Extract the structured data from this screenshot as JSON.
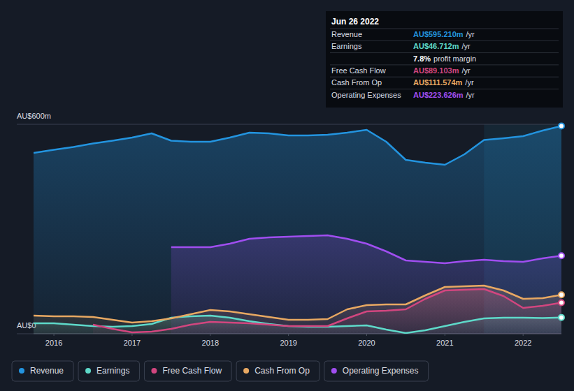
{
  "chart_data": {
    "type": "line",
    "x": [
      2015.74,
      2016.0,
      2016.25,
      2016.5,
      2016.75,
      2017.0,
      2017.25,
      2017.5,
      2017.75,
      2018.0,
      2018.25,
      2018.5,
      2018.75,
      2019.0,
      2019.25,
      2019.5,
      2019.75,
      2020.0,
      2020.25,
      2020.5,
      2020.75,
      2021.0,
      2021.25,
      2021.5,
      2021.75,
      2022.0,
      2022.25,
      2022.49
    ],
    "xlim": [
      2015.74,
      2022.49
    ],
    "xticks": [
      2016,
      2017,
      2018,
      2019,
      2020,
      2021,
      2022
    ],
    "ylim": [
      0,
      600
    ],
    "yticks": [
      {
        "value": 0,
        "label": "AU$0"
      },
      {
        "value": 600,
        "label": "AU$600m"
      }
    ],
    "grid": true,
    "legend": "bottom",
    "highlight_x": [
      2021.5,
      2022.49
    ],
    "series": [
      {
        "name": "Revenue",
        "color": "#2394df",
        "values": [
          518,
          527,
          535,
          545,
          553,
          562,
          574,
          553,
          550,
          550,
          562,
          576,
          574,
          568,
          568,
          570,
          576,
          584,
          550,
          498,
          490,
          484,
          514,
          555,
          560,
          566,
          582,
          595.21
        ]
      },
      {
        "name": "Earnings",
        "color": "#5ed9c9",
        "values": [
          30,
          30,
          26,
          22,
          20,
          22,
          28,
          46,
          50,
          52,
          46,
          36,
          28,
          22,
          20,
          20,
          22,
          24,
          12,
          2,
          10,
          22,
          34,
          44,
          46,
          46,
          45,
          46.712
        ]
      },
      {
        "name": "Free Cash Flow",
        "color": "#d2467f",
        "values": [
          null,
          null,
          null,
          26,
          14,
          4,
          6,
          14,
          26,
          34,
          32,
          30,
          26,
          22,
          22,
          22,
          44,
          64,
          66,
          70,
          100,
          124,
          126,
          128,
          108,
          74,
          80,
          89.103
        ]
      },
      {
        "name": "Cash From Op",
        "color": "#e8a862",
        "values": [
          52,
          50,
          50,
          48,
          40,
          32,
          36,
          44,
          56,
          68,
          64,
          56,
          48,
          40,
          40,
          42,
          70,
          82,
          84,
          84,
          110,
          134,
          136,
          138,
          124,
          100,
          102,
          111.574
        ]
      },
      {
        "name": "Operating Expenses",
        "color": "#a04ef0",
        "values": [
          null,
          null,
          null,
          null,
          null,
          null,
          null,
          248,
          248,
          248,
          258,
          272,
          276,
          278,
          280,
          282,
          272,
          258,
          236,
          210,
          206,
          202,
          208,
          212,
          208,
          206,
          216,
          223.626
        ]
      }
    ],
    "tooltip": {
      "title": "Jun 26 2022",
      "rows": [
        {
          "label": "Revenue",
          "value": "AU$595.210m",
          "unit": "/yr",
          "color": "#2394df"
        },
        {
          "label": "Earnings",
          "value": "AU$46.712m",
          "unit": "/yr",
          "color": "#5ed9c9"
        },
        {
          "value": "7.8%",
          "unit": "profit margin",
          "color": "#ffffff"
        },
        {
          "label": "Free Cash Flow",
          "value": "AU$89.103m",
          "unit": "/yr",
          "color": "#d2467f"
        },
        {
          "label": "Cash From Op",
          "value": "AU$111.574m",
          "unit": "/yr",
          "color": "#e8a862"
        },
        {
          "label": "Operating Expenses",
          "value": "AU$223.626m",
          "unit": "/yr",
          "color": "#a04ef0"
        }
      ]
    }
  }
}
